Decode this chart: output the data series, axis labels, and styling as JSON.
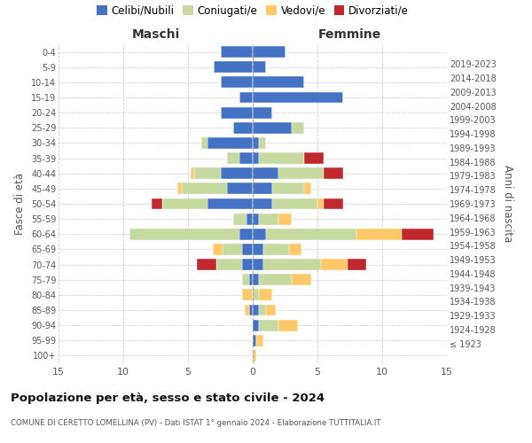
{
  "age_groups": [
    "100+",
    "95-99",
    "90-94",
    "85-89",
    "80-84",
    "75-79",
    "70-74",
    "65-69",
    "60-64",
    "55-59",
    "50-54",
    "45-49",
    "40-44",
    "35-39",
    "30-34",
    "25-29",
    "20-24",
    "15-19",
    "10-14",
    "5-9",
    "0-4"
  ],
  "birth_years": [
    "≤ 1923",
    "1924-1928",
    "1929-1933",
    "1934-1938",
    "1939-1943",
    "1944-1948",
    "1949-1953",
    "1954-1958",
    "1959-1963",
    "1964-1968",
    "1969-1973",
    "1974-1978",
    "1979-1983",
    "1984-1988",
    "1989-1993",
    "1994-1998",
    "1999-2003",
    "2004-2008",
    "2009-2013",
    "2014-2018",
    "2019-2023"
  ],
  "males": {
    "celibi": [
      0,
      0,
      0,
      0.3,
      0,
      0.3,
      0.8,
      0.8,
      1.0,
      0.5,
      3.5,
      2.0,
      2.5,
      1.0,
      3.5,
      1.5,
      2.5,
      1.0,
      2.5,
      3.0,
      2.5
    ],
    "coniugati": [
      0,
      0,
      0,
      0,
      0,
      0.5,
      2.0,
      1.5,
      8.5,
      1.0,
      3.5,
      3.5,
      2.0,
      1.0,
      0.5,
      0,
      0,
      0,
      0,
      0,
      0
    ],
    "vedovi": [
      0,
      0,
      0,
      0.3,
      0.8,
      0,
      0,
      0.8,
      0,
      0,
      0,
      0.3,
      0.3,
      0,
      0,
      0,
      0,
      0,
      0,
      0,
      0
    ],
    "divorziati": [
      0,
      0,
      0,
      0,
      0,
      0,
      1.5,
      0,
      0,
      0,
      0.8,
      0,
      0,
      0,
      0,
      0,
      0,
      0,
      0,
      0,
      0
    ]
  },
  "females": {
    "nubili": [
      0,
      0.3,
      0.5,
      0.5,
      0,
      0.5,
      0.8,
      0.8,
      1.0,
      0.5,
      1.5,
      1.5,
      2.0,
      0.5,
      0.5,
      3.0,
      1.5,
      7.0,
      4.0,
      1.0,
      2.5
    ],
    "coniugate": [
      0,
      0,
      1.5,
      0.5,
      0.5,
      2.5,
      4.5,
      2.0,
      7.0,
      1.5,
      3.5,
      2.5,
      3.5,
      3.5,
      0.5,
      1.0,
      0,
      0,
      0,
      0,
      0
    ],
    "vedove": [
      0.3,
      0.5,
      1.5,
      0.8,
      1.0,
      1.5,
      2.0,
      1.0,
      3.5,
      1.0,
      0.5,
      0.5,
      0,
      0,
      0,
      0,
      0,
      0,
      0,
      0,
      0
    ],
    "divorziate": [
      0,
      0,
      0,
      0,
      0,
      0,
      1.5,
      0,
      2.5,
      0,
      1.5,
      0,
      1.5,
      1.5,
      0,
      0,
      0,
      0,
      0,
      0,
      0
    ]
  },
  "colors": {
    "celibi": "#4472c4",
    "coniugati": "#c5d9a0",
    "vedovi": "#ffc869",
    "divorziati": "#c0282d"
  },
  "title": "Popolazione per età, sesso e stato civile - 2024",
  "subtitle": "COMUNE DI CERETTO LOMELLINA (PV) - Dati ISTAT 1° gennaio 2024 - Elaborazione TUTTITALIA.IT",
  "xlabel_left": "Maschi",
  "xlabel_right": "Femmine",
  "ylabel_left": "Fasce di età",
  "ylabel_right": "Anni di nascita",
  "xlim": 15,
  "bg_color": "#ffffff",
  "grid_color": "#cccccc",
  "legend_labels": [
    "Celibi/Nubili",
    "Coniugati/e",
    "Vedovi/e",
    "Divorziati/e"
  ]
}
